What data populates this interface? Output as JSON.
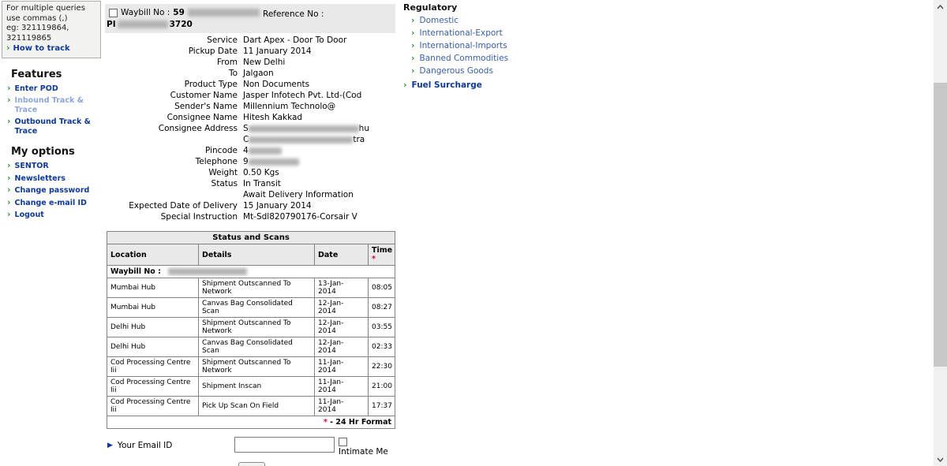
{
  "colors": {
    "link_navy": "#0d3a96",
    "link_muted": "#8ca6d8",
    "link_sub": "#3b5ea9",
    "arrow_green": "#2e9a2e",
    "asterisk_red": "#e2003c",
    "bar_gray": "#e9e9e9"
  },
  "sidebar": {
    "info_box": {
      "text": "For multiple queries\nuse commas (,)\neg: 321119864,\n321119865",
      "link_label": "How to track"
    },
    "sections": [
      {
        "title": "Features",
        "items": [
          {
            "label": "Enter POD",
            "muted": false
          },
          {
            "label": "Inbound Track & Trace",
            "muted": true
          },
          {
            "label": "Outbound Track & Trace",
            "muted": false
          }
        ]
      },
      {
        "title": "My options",
        "items": [
          {
            "label": "SENTOR",
            "muted": false
          },
          {
            "label": "Newsletters",
            "muted": false
          },
          {
            "label": "Change password",
            "muted": false
          },
          {
            "label": "Change e-mail ID",
            "muted": false
          },
          {
            "label": "Logout",
            "muted": false
          }
        ]
      }
    ]
  },
  "waybill_header": {
    "checkbox_checked": false,
    "waybill_label": "Waybill No :",
    "waybill_visible": "59",
    "reference_label": "Reference No :",
    "reference_visible_prefix": "PI",
    "reference_visible_suffix": "3720"
  },
  "shipment_details": {
    "rows": [
      {
        "label": "Service",
        "lines": [
          [
            {
              "text": "Dart Apex - Door To Door"
            }
          ]
        ]
      },
      {
        "label": "Pickup Date",
        "lines": [
          [
            {
              "text": "11 January 2014"
            }
          ]
        ]
      },
      {
        "label": "From",
        "lines": [
          [
            {
              "text": "New Delhi"
            }
          ]
        ]
      },
      {
        "label": "To",
        "lines": [
          [
            {
              "text": "Jalgaon"
            }
          ]
        ]
      },
      {
        "label": "Product Type",
        "lines": [
          [
            {
              "text": "Non Documents"
            }
          ]
        ]
      },
      {
        "label": "Customer Name",
        "lines": [
          [
            {
              "text": "Jasper Infotech Pvt. Ltd-(Cod"
            }
          ]
        ]
      },
      {
        "label": "Sender's Name",
        "lines": [
          [
            {
              "text": "Millennium Technolo@"
            }
          ]
        ]
      },
      {
        "label": "Consignee Name",
        "lines": [
          [
            {
              "text": "Hitesh Kakkad"
            }
          ]
        ]
      },
      {
        "label": "Consignee Address",
        "lines": [
          [
            {
              "text": "S"
            },
            {
              "blur": 140
            },
            {
              "text": "hu"
            }
          ],
          [
            {
              "text": "C"
            },
            {
              "blur": 132
            },
            {
              "text": "tra"
            }
          ]
        ]
      },
      {
        "label": "Pincode",
        "lines": [
          [
            {
              "text": "4"
            },
            {
              "blur": 42
            }
          ]
        ]
      },
      {
        "label": "Telephone",
        "lines": [
          [
            {
              "text": "9"
            },
            {
              "blur": 64
            }
          ]
        ]
      },
      {
        "label": "Weight",
        "lines": [
          [
            {
              "text": "0.50 Kgs"
            }
          ]
        ]
      },
      {
        "label": "Status",
        "lines": [
          [
            {
              "text": "In Transit"
            }
          ],
          [
            {
              "text": "Await Delivery Information"
            }
          ]
        ]
      },
      {
        "label": "Expected Date of Delivery",
        "lines": [
          [
            {
              "text": "15 January 2014"
            }
          ]
        ]
      },
      {
        "label": "Special Instruction",
        "lines": [
          [
            {
              "text": "Mt-Sdl820790176-Corsair V"
            }
          ]
        ]
      }
    ]
  },
  "scan_table": {
    "title": "Status and Scans",
    "headers": {
      "location": "Location",
      "details": "Details",
      "date": "Date",
      "time": "Time",
      "time_asterisk": "*"
    },
    "waybill_row_label": "Waybill No :",
    "rows": [
      {
        "location": "Mumbai Hub",
        "details": "Shipment Outscanned To Network",
        "date": "13-Jan-2014",
        "time": "08:05"
      },
      {
        "location": "Mumbai Hub",
        "details": "Canvas Bag Consolidated Scan",
        "date": "12-Jan-2014",
        "time": "08:27"
      },
      {
        "location": "Delhi Hub",
        "details": "Shipment Outscanned To Network",
        "date": "12-Jan-2014",
        "time": "03:55"
      },
      {
        "location": "Delhi Hub",
        "details": "Canvas Bag Consolidated Scan",
        "date": "12-Jan-2014",
        "time": "02:33"
      },
      {
        "location": "Cod Processing Centre Iii",
        "details": "Shipment Outscanned To Network",
        "date": "11-Jan-2014",
        "time": "22:30"
      },
      {
        "location": "Cod Processing Centre Iii",
        "details": "Shipment Inscan",
        "date": "11-Jan-2014",
        "time": "21:00"
      },
      {
        "location": "Cod Processing Centre Iii",
        "details": "Pick Up Scan On Field",
        "date": "11-Jan-2014",
        "time": "17:37"
      }
    ],
    "footer": {
      "asterisk": "*",
      "text": "- 24 Hr Format"
    }
  },
  "regulatory": {
    "title": "Regulatory",
    "items": [
      {
        "label": "Domestic",
        "emphasis": false
      },
      {
        "label": "International-Export",
        "emphasis": false
      },
      {
        "label": "International-Imports",
        "emphasis": false
      },
      {
        "label": "Banned Commodities",
        "emphasis": false
      },
      {
        "label": "Dangerous Goods",
        "emphasis": false
      },
      {
        "label": "Fuel Surcharge",
        "emphasis": true
      }
    ]
  },
  "email_section": {
    "label": "Your Email ID",
    "input_value": "",
    "checkbox_label": "Intimate Me",
    "checkbox_checked": false
  }
}
